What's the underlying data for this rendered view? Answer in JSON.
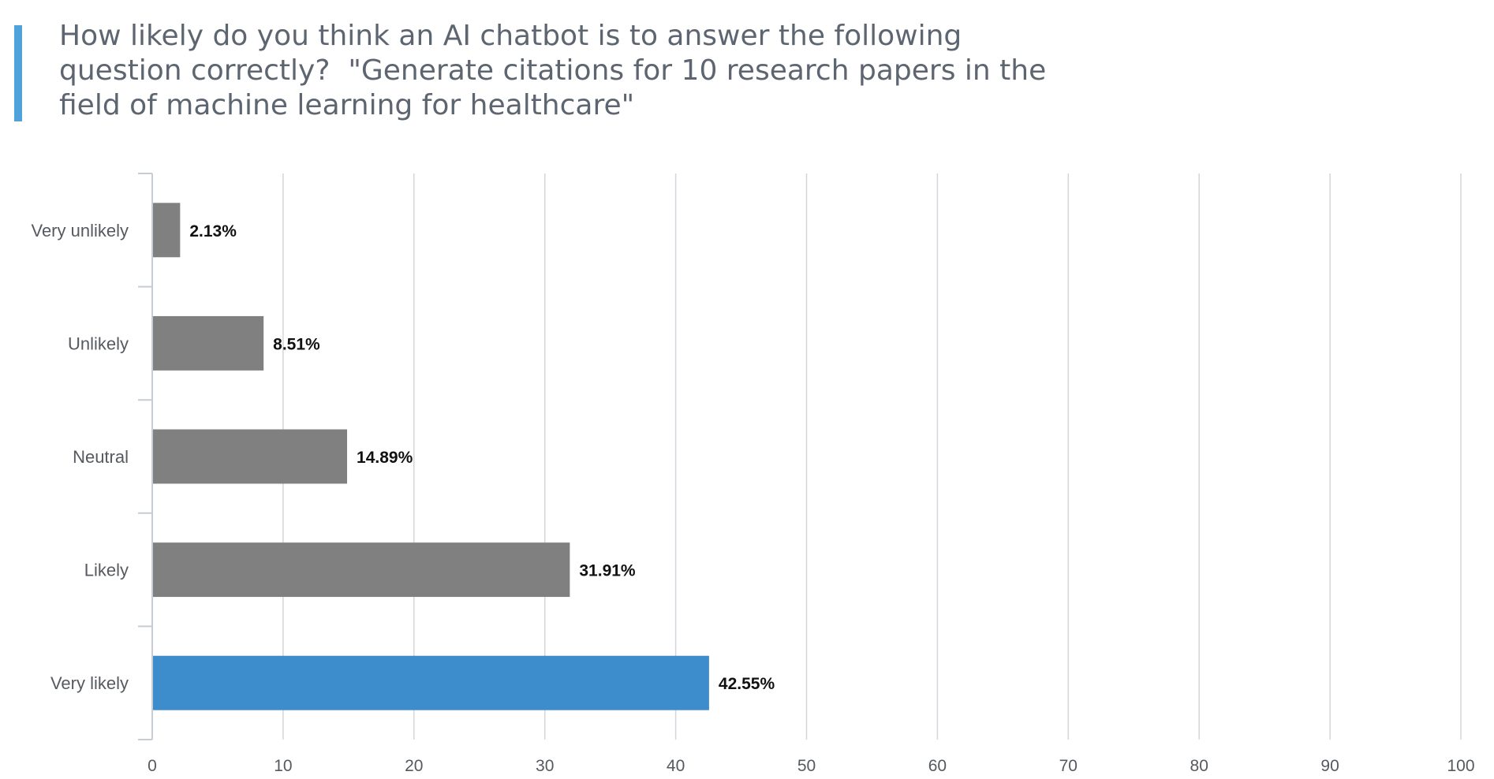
{
  "chart_data": {
    "type": "bar",
    "orientation": "horizontal",
    "title": "How likely do you think an AI chatbot is to answer the following question correctly?  \"Generate citations for 10 research papers in the field of machine learning for healthcare\"",
    "categories": [
      "Very unlikely",
      "Unlikely",
      "Neutral",
      "Likely",
      "Very likely"
    ],
    "values": [
      2.13,
      8.51,
      14.89,
      31.91,
      42.55
    ],
    "data_labels": [
      "2.13%",
      "8.51%",
      "14.89%",
      "31.91%",
      "42.55%"
    ],
    "xlim": [
      0,
      100
    ],
    "x_ticks": [
      "0",
      "10",
      "20",
      "30",
      "40",
      "50",
      "60",
      "70",
      "80",
      "90",
      "100"
    ],
    "grid": true,
    "legend": "none",
    "bar_color": "#808080",
    "highlight_color": "#3d8ccc",
    "highlight_index": 4,
    "accent_color": "#4ea3db",
    "title_color": "#5d6670"
  }
}
